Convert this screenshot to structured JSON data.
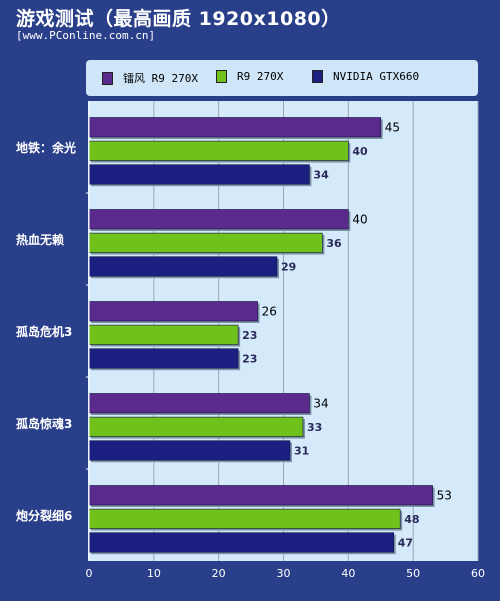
{
  "header": {
    "title": "游戏测试（最高画质 1920x1080）",
    "subtitle": "[www.PConline.com.cn]"
  },
  "colors": {
    "background": "#2a3f8a",
    "plot_background": "#d4eafb",
    "legend_background": "#cfe6f8"
  },
  "chart_data": {
    "type": "bar",
    "orientation": "horizontal",
    "categories": [
      "地铁：余光",
      "热血无赖",
      "孤岛危机3",
      "孤岛惊魂3",
      "炮分裂细6"
    ],
    "series": [
      {
        "name": "镭风 R9 270X",
        "color": "#5a2a8c",
        "values": [
          45,
          40,
          26,
          34,
          53
        ]
      },
      {
        "name": "R9 270X",
        "color": "#6fc21c",
        "values": [
          40,
          36,
          23,
          33,
          48
        ]
      },
      {
        "name": "NVIDIA GTX660",
        "color": "#1a1f80",
        "values": [
          34,
          29,
          23,
          31,
          47
        ]
      }
    ],
    "xlim": [
      0,
      60
    ],
    "xticks": [
      0,
      10,
      20,
      30,
      40,
      50,
      60
    ],
    "grid": true,
    "legend_position": "top"
  }
}
